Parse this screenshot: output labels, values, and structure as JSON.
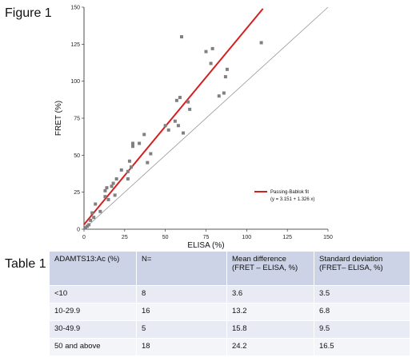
{
  "figure_label": "Figure 1",
  "table_label": "Table 1",
  "chart_data": {
    "type": "scatter",
    "xlabel": "ELISA (%)",
    "ylabel": "FRET (%)",
    "xlim": [
      0,
      150
    ],
    "ylim": [
      0,
      150
    ],
    "xticks": [
      "0",
      "25",
      "50",
      "75",
      "100",
      "125",
      "150"
    ],
    "yticks": [
      "0",
      "25",
      "50",
      "75",
      "100",
      "125",
      "150"
    ],
    "grid": false,
    "legend": {
      "placement": "bottom-right",
      "fit_label": "Passing-Bablok fit",
      "equation": "(y = 3.151 + 1.326 x)"
    },
    "fit_line": {
      "intercept": 3.151,
      "slope": 1.326,
      "x_range": [
        0,
        110
      ],
      "color": "#d42020"
    },
    "identity_line": {
      "x_range": [
        0,
        150
      ],
      "color": "#999999"
    },
    "point_color": "#808080",
    "points": [
      [
        1,
        1
      ],
      [
        2,
        2
      ],
      [
        3,
        3
      ],
      [
        4,
        6
      ],
      [
        5,
        11
      ],
      [
        6,
        8
      ],
      [
        7,
        17
      ],
      [
        10,
        12
      ],
      [
        13,
        26
      ],
      [
        13,
        22
      ],
      [
        14,
        28
      ],
      [
        15,
        20
      ],
      [
        17,
        29
      ],
      [
        18,
        31
      ],
      [
        19,
        23
      ],
      [
        20,
        34
      ],
      [
        23,
        40
      ],
      [
        27,
        39
      ],
      [
        27,
        34
      ],
      [
        28,
        46
      ],
      [
        29,
        42
      ],
      [
        30,
        56
      ],
      [
        30,
        58
      ],
      [
        34,
        58
      ],
      [
        37,
        64
      ],
      [
        39,
        45
      ],
      [
        41,
        51
      ],
      [
        50,
        70
      ],
      [
        52,
        67
      ],
      [
        56,
        73
      ],
      [
        57,
        87
      ],
      [
        58,
        70
      ],
      [
        59,
        89
      ],
      [
        60,
        130
      ],
      [
        61,
        65
      ],
      [
        64,
        86
      ],
      [
        65,
        81
      ],
      [
        75,
        120
      ],
      [
        78,
        112
      ],
      [
        79,
        122
      ],
      [
        83,
        90
      ],
      [
        86,
        92
      ],
      [
        87,
        103
      ],
      [
        88,
        108
      ],
      [
        109,
        126
      ]
    ]
  },
  "table": {
    "headers": [
      "ADAMTS13:Ac (%)",
      "N=",
      "Mean difference (FRET – ELISA, %)",
      "Standard deviation (FRET– ELISA, %)"
    ],
    "rows": [
      [
        "<10",
        "8",
        "3.6",
        "3.5"
      ],
      [
        "10-29.9",
        "16",
        "13.2",
        "6.8"
      ],
      [
        "30-49.9",
        "5",
        "15.8",
        "9.5"
      ],
      [
        "50 and above",
        "18",
        "24.2",
        "16.5"
      ]
    ]
  }
}
